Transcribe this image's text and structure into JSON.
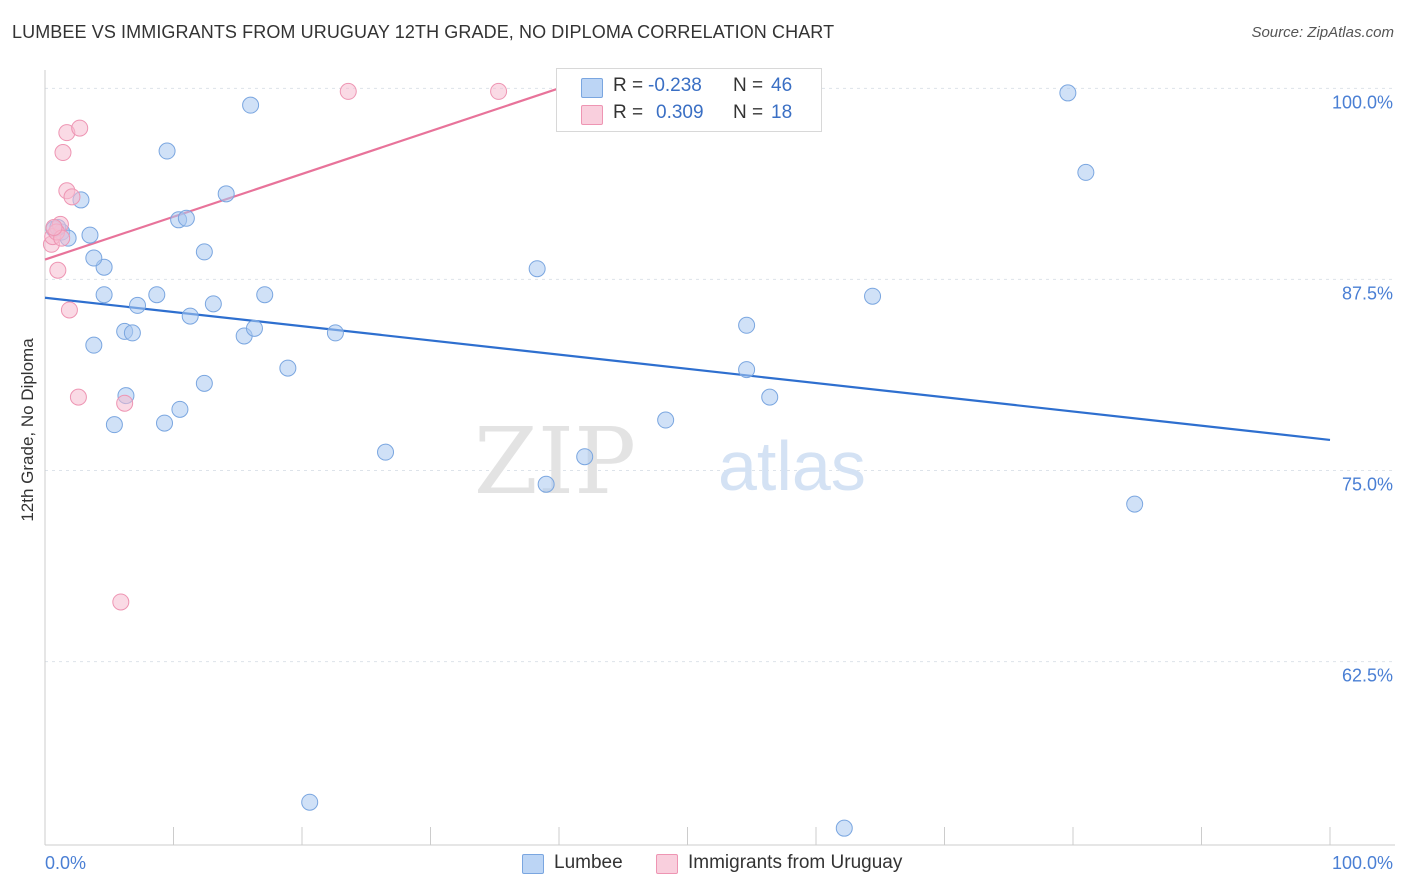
{
  "title": "LUMBEE VS IMMIGRANTS FROM URUGUAY 12TH GRADE, NO DIPLOMA CORRELATION CHART",
  "source": "Source: ZipAtlas.com",
  "watermark": {
    "zip": "ZIP",
    "atlas": "atlas"
  },
  "colors": {
    "blue_fill": "#aac8f0",
    "blue_stroke": "#7aa6e0",
    "blue_line": "#2e6fcf",
    "pink_fill": "#f6bcd0",
    "pink_stroke": "#ee95b3",
    "pink_line": "#e8739a",
    "axis_text": "#4a7fd4",
    "grid": "#dde3ea"
  },
  "legend": {
    "r_label": "R =",
    "n_label": "N =",
    "blue": {
      "r": "-0.238",
      "n": "46"
    },
    "pink": {
      "r": "0.309",
      "n": "18"
    }
  },
  "bottom_legend": {
    "blue": "Lumbee",
    "pink": "Immigrants from Uruguay"
  },
  "chart_data": {
    "type": "scatter",
    "title": "LUMBEE VS IMMIGRANTS FROM URUGUAY 12TH GRADE, NO DIPLOMA CORRELATION CHART",
    "xlabel": "",
    "ylabel": "12th Grade, No Diploma",
    "xlim": [
      0,
      100
    ],
    "ylim": [
      50.5,
      101.2
    ],
    "x_tick_labels": [
      "0.0%",
      "100.0%"
    ],
    "y_ticks": [
      100.0,
      87.5,
      75.0,
      62.5
    ],
    "y_tick_labels": [
      "100.0%",
      "87.5%",
      "75.0%",
      "62.5%"
    ],
    "series": [
      {
        "name": "Lumbee",
        "color": "blue",
        "r": -0.238,
        "n": 46,
        "trend": {
          "x": [
            0,
            100
          ],
          "y": [
            86.3,
            77.0
          ]
        },
        "points": [
          [
            0.7,
            90.8
          ],
          [
            1.3,
            90.6
          ],
          [
            1.8,
            90.2
          ],
          [
            2.8,
            92.7
          ],
          [
            3.5,
            90.4
          ],
          [
            4.6,
            88.3
          ],
          [
            3.8,
            88.9
          ],
          [
            4.6,
            86.5
          ],
          [
            7.2,
            85.8
          ],
          [
            8.7,
            86.5
          ],
          [
            6.2,
            84.1
          ],
          [
            6.8,
            84.0
          ],
          [
            9.5,
            95.9
          ],
          [
            10.4,
            91.4
          ],
          [
            11.0,
            91.5
          ],
          [
            12.4,
            89.3
          ],
          [
            11.3,
            85.1
          ],
          [
            13.1,
            85.9
          ],
          [
            14.1,
            93.1
          ],
          [
            15.5,
            83.8
          ],
          [
            17.1,
            86.5
          ],
          [
            16.3,
            84.3
          ],
          [
            3.8,
            83.2
          ],
          [
            6.3,
            79.9
          ],
          [
            5.4,
            78.0
          ],
          [
            9.3,
            78.1
          ],
          [
            10.5,
            79.0
          ],
          [
            12.4,
            80.7
          ],
          [
            18.9,
            81.7
          ],
          [
            22.6,
            84.0
          ],
          [
            16.0,
            98.9
          ],
          [
            26.5,
            76.2
          ],
          [
            38.3,
            88.2
          ],
          [
            39.0,
            74.1
          ],
          [
            42.0,
            75.9
          ],
          [
            48.3,
            78.3
          ],
          [
            54.6,
            84.5
          ],
          [
            54.6,
            81.6
          ],
          [
            56.4,
            79.8
          ],
          [
            64.4,
            86.4
          ],
          [
            79.6,
            99.7
          ],
          [
            81.0,
            94.5
          ],
          [
            84.8,
            72.8
          ],
          [
            20.6,
            53.3
          ],
          [
            62.2,
            51.6
          ],
          [
            1.0,
            90.9
          ]
        ]
      },
      {
        "name": "Immigrants from Uruguay",
        "color": "pink",
        "r": 0.309,
        "n": 18,
        "trend": {
          "x": [
            0,
            40
          ],
          "y": [
            88.8,
            100.0
          ]
        },
        "points": [
          [
            0.5,
            89.8
          ],
          [
            0.6,
            90.3
          ],
          [
            1.0,
            88.1
          ],
          [
            1.2,
            91.1
          ],
          [
            1.4,
            95.8
          ],
          [
            1.7,
            97.1
          ],
          [
            2.7,
            97.4
          ],
          [
            1.7,
            93.3
          ],
          [
            2.1,
            92.9
          ],
          [
            1.9,
            85.5
          ],
          [
            2.6,
            79.8
          ],
          [
            6.2,
            79.4
          ],
          [
            5.9,
            66.4
          ],
          [
            23.6,
            99.8
          ],
          [
            35.3,
            99.8
          ],
          [
            0.9,
            90.6
          ],
          [
            1.3,
            90.2
          ],
          [
            0.7,
            90.9
          ]
        ]
      }
    ]
  }
}
